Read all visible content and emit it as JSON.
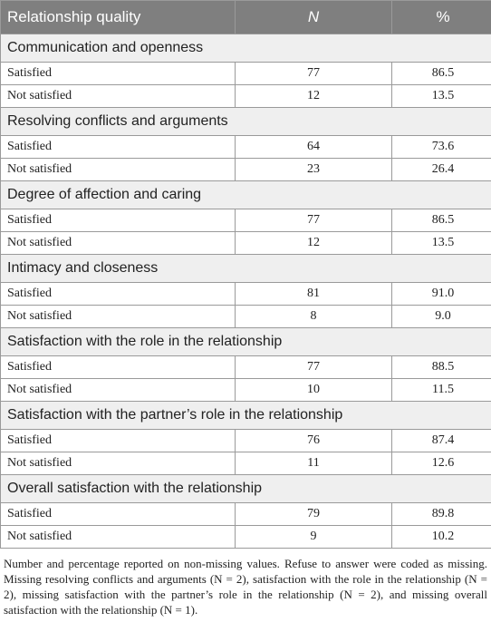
{
  "table": {
    "header": [
      "Relationship quality",
      "N",
      "%"
    ],
    "sections": [
      {
        "title": "Communication and openness",
        "rows": [
          [
            "Satisfied",
            "77",
            "86.5"
          ],
          [
            "Not satisfied",
            "12",
            "13.5"
          ]
        ]
      },
      {
        "title": "Resolving conflicts and arguments",
        "rows": [
          [
            "Satisfied",
            "64",
            "73.6"
          ],
          [
            "Not satisfied",
            "23",
            "26.4"
          ]
        ]
      },
      {
        "title": "Degree of affection and caring",
        "rows": [
          [
            "Satisfied",
            "77",
            "86.5"
          ],
          [
            "Not satisfied",
            "12",
            "13.5"
          ]
        ]
      },
      {
        "title": "Intimacy and closeness",
        "rows": [
          [
            "Satisfied",
            "81",
            "91.0"
          ],
          [
            "Not satisfied",
            "8",
            "9.0"
          ]
        ]
      },
      {
        "title": "Satisfaction with the role in the relationship",
        "rows": [
          [
            "Satisfied",
            "77",
            "88.5"
          ],
          [
            "Not satisfied",
            "10",
            "11.5"
          ]
        ]
      },
      {
        "title": "Satisfaction with the partner’s role in the relationship",
        "rows": [
          [
            "Satisfied",
            "76",
            "87.4"
          ],
          [
            "Not satisfied",
            "11",
            "12.6"
          ]
        ]
      },
      {
        "title": "Overall satisfaction with the relationship",
        "rows": [
          [
            "Satisfied",
            "79",
            "89.8"
          ],
          [
            "Not satisfied",
            "9",
            "10.2"
          ]
        ]
      }
    ]
  },
  "footnote": "Number and percentage reported on non-missing values. Refuse to answer were coded as missing. Missing resolving conflicts and arguments (N = 2), satisfaction with the role in the relationship (N = 2), missing satisfaction with the partner’s role in the relationship (N = 2), and missing overall satisfaction with the relationship (N = 1)."
}
